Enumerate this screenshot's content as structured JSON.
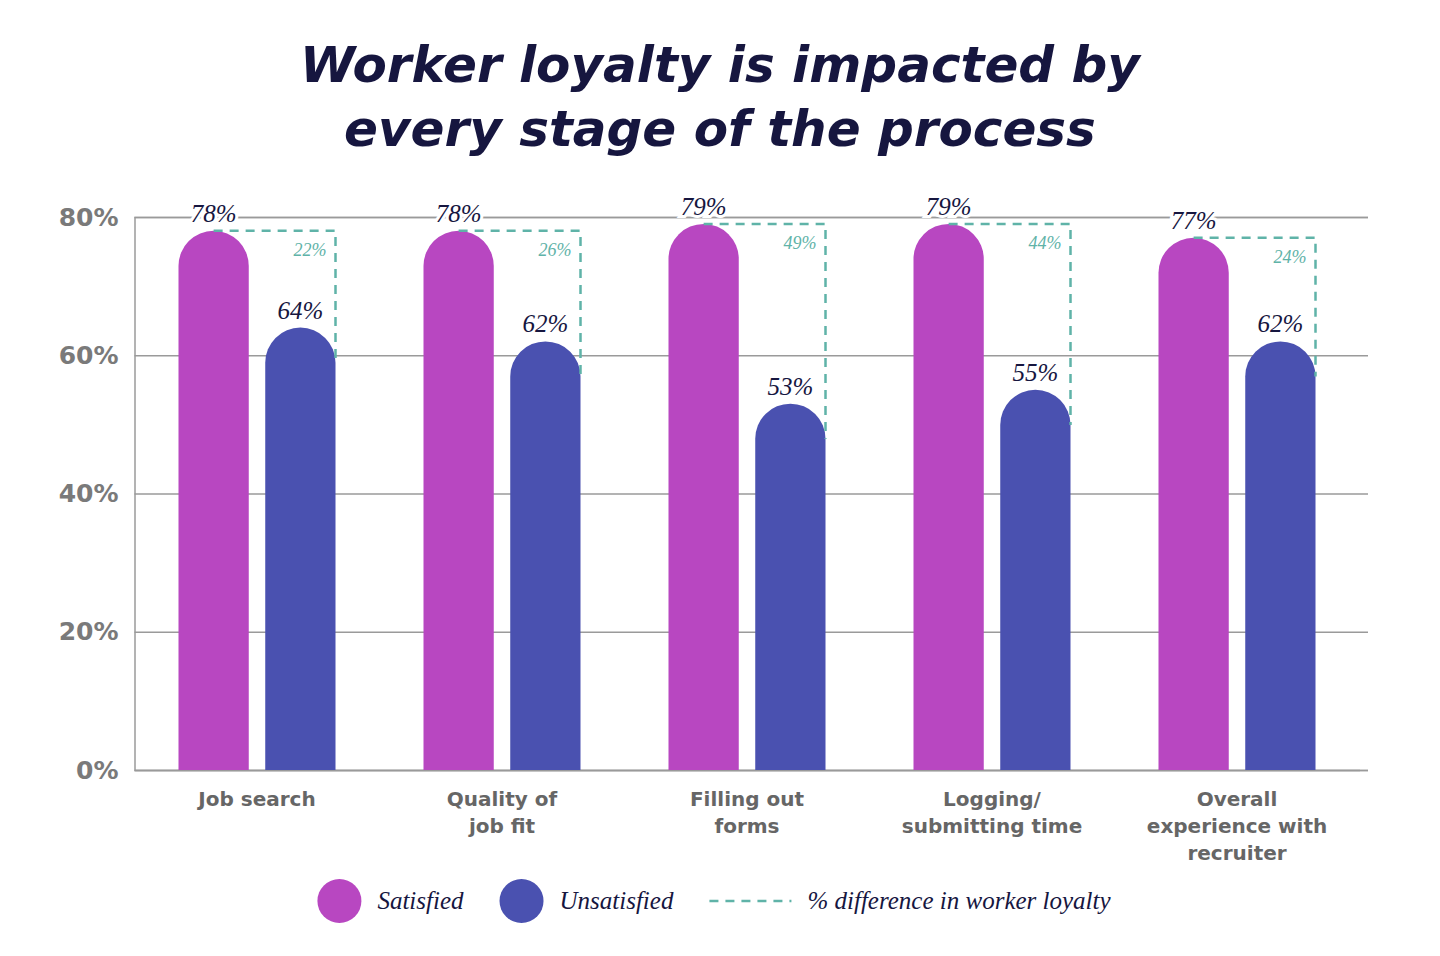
{
  "chart_data": {
    "type": "bar",
    "title": "Worker loyalty is impacted by\nevery stage of the process",
    "categories": [
      "Job search",
      "Quality of\njob fit",
      "Filling out\nforms",
      "Logging/\nsubmitting time",
      "Overall\nexperience with\nrecruiter"
    ],
    "series": [
      {
        "name": "Satisfied",
        "color": "#b847c1",
        "values": [
          78,
          78,
          79,
          79,
          77
        ],
        "value_labels": [
          "78%",
          "78%",
          "79%",
          "79%",
          "77%"
        ]
      },
      {
        "name": "Unsatisfied",
        "color": "#4a51b0",
        "values": [
          64,
          62,
          53,
          55,
          62
        ],
        "value_labels": [
          "64%",
          "62%",
          "53%",
          "55%",
          "62%"
        ]
      },
      {
        "name": "% difference in worker loyalty",
        "type": "bracket",
        "color": "#5fb3a8",
        "line_style": "dashed",
        "values": [
          22,
          26,
          49,
          44,
          24
        ],
        "value_labels": [
          "22%",
          "26%",
          "49%",
          "44%",
          "24%"
        ]
      }
    ],
    "ylim": [
      0,
      80
    ],
    "yticks": [
      {
        "value": 0,
        "label": "0%"
      },
      {
        "value": 20,
        "label": "20%"
      },
      {
        "value": 40,
        "label": "40%"
      },
      {
        "value": 60,
        "label": "60%"
      },
      {
        "value": 80,
        "label": "80%"
      }
    ],
    "grid": true,
    "data_labels": true,
    "legend": "bottom"
  }
}
